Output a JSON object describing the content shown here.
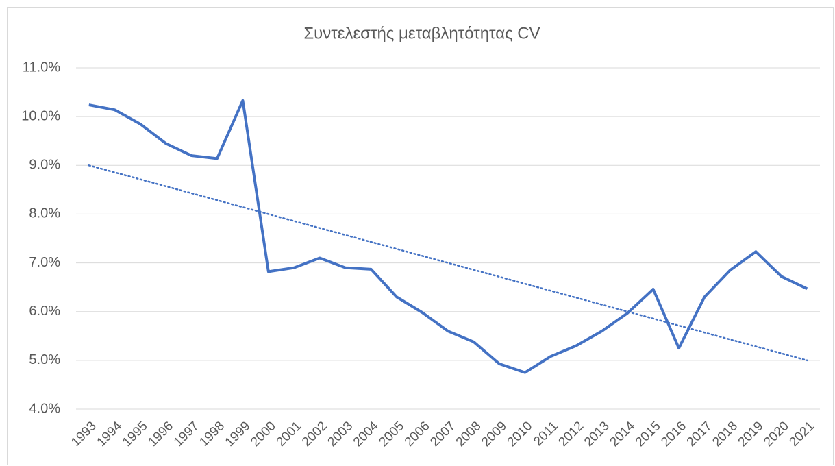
{
  "chart_data": {
    "type": "line",
    "title": "Συντελεστής μεταβλητότητας CV",
    "categories": [
      "1993",
      "1994",
      "1995",
      "1996",
      "1997",
      "1998",
      "1999",
      "2000",
      "2001",
      "2002",
      "2003",
      "2004",
      "2005",
      "2006",
      "2007",
      "2008",
      "2009",
      "2010",
      "2011",
      "2012",
      "2013",
      "2014",
      "2015",
      "2016",
      "2017",
      "2018",
      "2019",
      "2020",
      "2021"
    ],
    "series": [
      {
        "color": "#4472c4",
        "values": [
          10.24,
          10.14,
          9.85,
          9.45,
          9.2,
          9.14,
          10.33,
          6.82,
          6.9,
          7.1,
          6.9,
          6.87,
          6.3,
          5.98,
          5.6,
          5.38,
          4.93,
          4.75,
          5.08,
          5.3,
          5.6,
          5.97,
          6.46,
          5.25,
          6.3,
          6.85,
          7.23,
          6.72,
          6.47
        ]
      }
    ],
    "trendline": {
      "color": "#4472c4",
      "style": "dotted",
      "values": [
        9.0,
        5.0
      ]
    },
    "ylim": [
      4,
      11
    ],
    "yticks": [
      {
        "value": 4,
        "label": "4.0%"
      },
      {
        "value": 5,
        "label": "5.0%"
      },
      {
        "value": 6,
        "label": "6.0%"
      },
      {
        "value": 7,
        "label": "7.0%"
      },
      {
        "value": 8,
        "label": "8.0%"
      },
      {
        "value": 9,
        "label": "9.0%"
      },
      {
        "value": 10,
        "label": "10.0%"
      },
      {
        "value": 11,
        "label": "11.0%"
      }
    ],
    "grid": true
  }
}
